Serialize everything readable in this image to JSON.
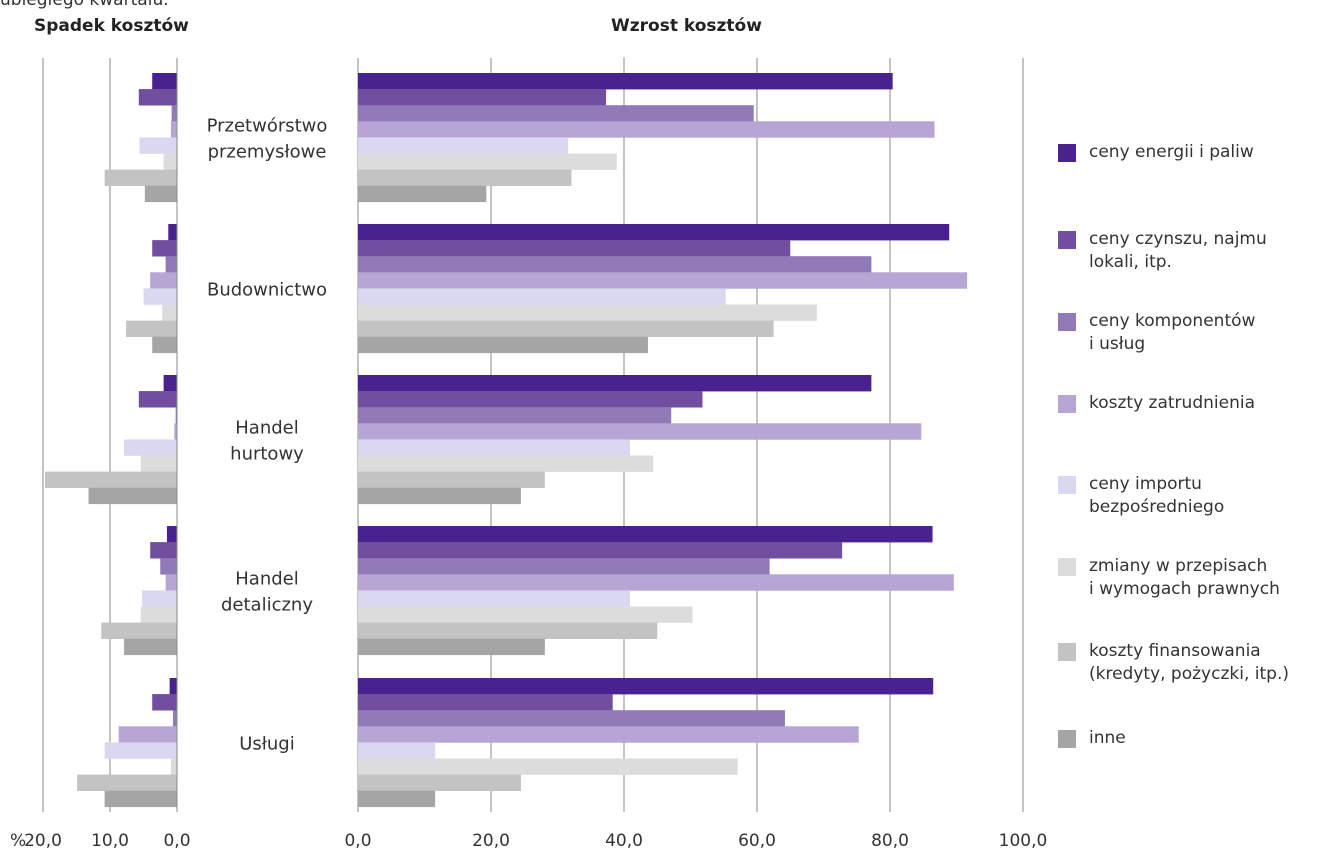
{
  "header": {
    "fragment": "ubiegłego kwartału.",
    "left_title": "Spadek kosztów",
    "right_title": "Wzrost kosztów"
  },
  "chart_data": [
    {
      "type": "bar",
      "orientation": "horizontal",
      "title": "Spadek kosztów",
      "categories": [
        "Przetwórstwo przemysłowe",
        "Budownictwo",
        "Handel hurtowy",
        "Handel detaliczny",
        "Usługi"
      ],
      "series": [
        {
          "name": "ceny energii i paliw",
          "values": [
            3.7,
            1.3,
            2.0,
            1.5,
            1.1
          ]
        },
        {
          "name": "ceny czynszu, najmu lokali, itp.",
          "values": [
            5.7,
            3.7,
            5.7,
            4.0,
            3.7
          ]
        },
        {
          "name": "ceny komponentów i usług",
          "values": [
            0.8,
            1.7,
            0.2,
            2.5,
            0.6
          ]
        },
        {
          "name": "koszty zatrudnienia",
          "values": [
            0.9,
            4.0,
            0.4,
            1.7,
            8.7
          ]
        },
        {
          "name": "ceny importu bezpośredniego",
          "values": [
            5.6,
            5.0,
            7.9,
            5.2,
            10.8
          ]
        },
        {
          "name": "zmiany w przepisach i wymogach prawnych",
          "values": [
            2.0,
            2.2,
            5.4,
            5.4,
            0.9
          ]
        },
        {
          "name": "koszty finansowania (kredyty, pożyczki, itp.)",
          "values": [
            10.8,
            7.6,
            19.7,
            11.3,
            14.9
          ]
        },
        {
          "name": "inne",
          "values": [
            4.8,
            3.7,
            13.2,
            7.9,
            10.8
          ]
        }
      ],
      "x_ticks": [
        "20,0",
        "10,0",
        "0,0"
      ],
      "x_unit": "%",
      "xlim": [
        0,
        20
      ],
      "direction": "right-to-left",
      "grid": true
    },
    {
      "type": "bar",
      "orientation": "horizontal",
      "title": "Wzrost kosztów",
      "categories": [
        "Przetwórstwo przemysłowe",
        "Budownictwo",
        "Handel hurtowy",
        "Handel detaliczny",
        "Usługi"
      ],
      "series": [
        {
          "name": "ceny energii i paliw",
          "values": [
            80.4,
            88.9,
            77.2,
            86.4,
            86.5
          ]
        },
        {
          "name": "ceny czynszu, najmu lokali, itp.",
          "values": [
            37.3,
            65.0,
            51.8,
            72.8,
            38.3
          ]
        },
        {
          "name": "ceny komponentów i usług",
          "values": [
            59.5,
            77.2,
            47.1,
            61.9,
            64.2
          ]
        },
        {
          "name": "koszty zatrudnienia",
          "values": [
            86.7,
            91.6,
            84.7,
            89.6,
            75.3
          ]
        },
        {
          "name": "ceny importu bezpośredniego",
          "values": [
            31.6,
            55.3,
            40.9,
            40.9,
            11.6
          ]
        },
        {
          "name": "zmiany w przepisach i wymogach prawnych",
          "values": [
            38.9,
            69.0,
            44.4,
            50.3,
            57.1
          ]
        },
        {
          "name": "koszty finansowania (kredyty, pożyczki, itp.)",
          "values": [
            32.1,
            62.5,
            28.1,
            45.0,
            24.5
          ]
        },
        {
          "name": "inne",
          "values": [
            19.3,
            43.6,
            24.5,
            28.1,
            11.6
          ]
        }
      ],
      "x_ticks": [
        "0,0",
        "20,0",
        "40,0",
        "60,0",
        "80,0",
        "100,0"
      ],
      "x_unit": "%",
      "xlim": [
        0,
        100
      ],
      "grid": true
    }
  ],
  "category_labels": [
    "Przetwórstwo\nprzemysłowe",
    "Budownictwo",
    "Handel\nhurtowy",
    "Handel\ndetaliczny",
    "Usługi"
  ],
  "legend": [
    {
      "label": "ceny energii i paliw",
      "color": "#4a2290"
    },
    {
      "label": "ceny czynszu, najmu\nlokali, itp.",
      "color": "#714e9f"
    },
    {
      "label": "ceny komponentów\ni usług",
      "color": "#9279b8"
    },
    {
      "label": "koszty zatrudnienia",
      "color": "#b7a6d5"
    },
    {
      "label": "ceny importu\nbezpośredniego",
      "color": "#dad8f1"
    },
    {
      "label": "zmiany w przepisach\ni wymogach prawnych",
      "color": "#dcdcdc"
    },
    {
      "label": "koszty finansowania\n(kredyty, pożyczki, itp.)",
      "color": "#c3c3c3"
    },
    {
      "label": "inne",
      "color": "#a5a5a5"
    }
  ]
}
